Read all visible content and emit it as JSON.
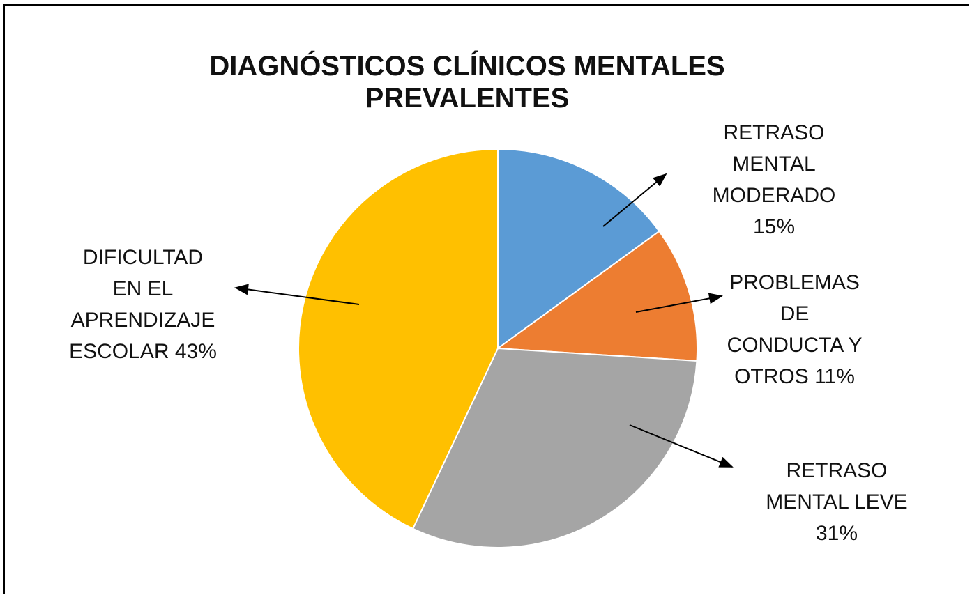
{
  "chart_data": {
    "type": "pie",
    "title": "DIAGNÓSTICOS CLÍNICOS MENTALES PREVALENTES",
    "categories": [
      "RETRASO MENTAL MODERADO",
      "PROBLEMAS DE CONDUCTA Y OTROS",
      "RETRASO MENTAL LEVE",
      "DIFICULTAD EN EL APRENDIZAJE ESCOLAR"
    ],
    "values": [
      15,
      11,
      31,
      43
    ],
    "value_labels": [
      "15%",
      "11%",
      "31%",
      "43%"
    ],
    "colors": [
      "#5b9bd5",
      "#ed7d31",
      "#a5a5a5",
      "#ffc000"
    ]
  }
}
